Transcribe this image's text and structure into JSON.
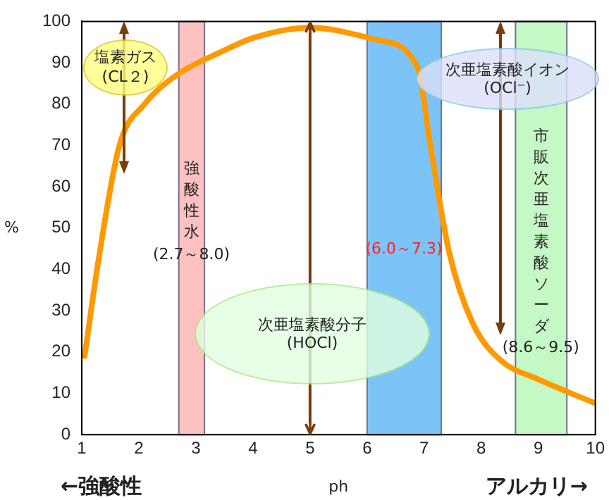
{
  "chart_data": {
    "type": "line",
    "xlabel": "ph",
    "ylabel": "%",
    "x": [
      1.05,
      1.29,
      1.66,
      2.1,
      2.66,
      3.5,
      4,
      5,
      6.15,
      6.88,
      7.12,
      7.44,
      7.85,
      8.34,
      9,
      9.98
    ],
    "series": [
      {
        "color": "#ff9900",
        "values": [
          19,
          42,
          70,
          80,
          87,
          93,
          96,
          98.5,
          95.6,
          89,
          69,
          44,
          27,
          18,
          13.4,
          7.7
        ]
      }
    ],
    "xlim": [
      1,
      10
    ],
    "xticks": [
      1,
      2,
      3,
      4,
      5,
      6,
      7,
      8,
      9,
      10
    ],
    "ylim": [
      0,
      100
    ],
    "yticks": [
      0,
      10,
      20,
      30,
      40,
      50,
      60,
      70,
      80,
      90,
      100
    ],
    "grid": false,
    "legend": false,
    "marker": "none",
    "line_style": "solid",
    "ref_lines": [
      {
        "axis": "x",
        "value": 5,
        "color": "#7a3c0a"
      }
    ],
    "bands": [
      {
        "axis": "x",
        "from": 2.7,
        "to": 3.15,
        "label": "強酸性水\n(2.7～8.0)",
        "color": "#ffc0c0"
      },
      {
        "axis": "x",
        "from": 6.0,
        "to": 7.3,
        "label": "(6.0～7.3)",
        "color": "#7cc4f8"
      },
      {
        "axis": "x",
        "from": 8.6,
        "to": 9.5,
        "label": "市販次亜塩素酸ソーダ\n(8.6～9.5)",
        "color": "#c4f8c4"
      }
    ],
    "annotations": [
      "←強酸性",
      "アルカリ→",
      "塩素ガス\n(CL２)",
      "次亜塩素酸分子\n(HOCl)",
      "次亜塩素酸イオン\n(OCl⁻)"
    ]
  }
}
